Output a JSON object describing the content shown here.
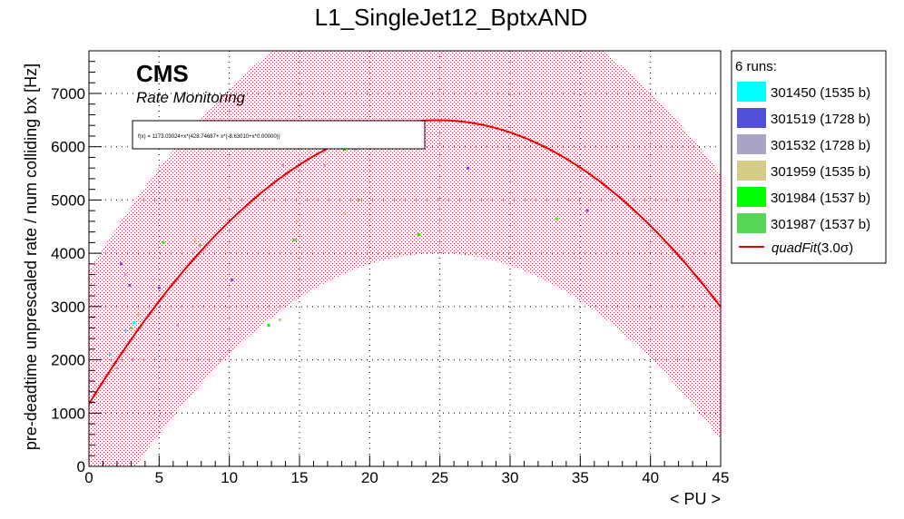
{
  "chart_data": {
    "type": "scatter",
    "title": "L1_SingleJet12_BptxAND",
    "xlabel": "< PU >",
    "ylabel": "pre-deadtime unprescaled rate / num colliding bx [Hz]",
    "xlim": [
      0,
      45
    ],
    "ylim": [
      0,
      7800
    ],
    "x_ticks": [
      0,
      5,
      10,
      15,
      20,
      25,
      30,
      35,
      40,
      45
    ],
    "y_ticks": [
      0,
      1000,
      2000,
      3000,
      4000,
      5000,
      6000,
      7000
    ],
    "grid": true,
    "legend_position": "right",
    "annotations": {
      "cms_label": "CMS",
      "subtitle": "Rate Monitoring",
      "fit_formula": "f(x) = 1173.03024+x*(428.74687+ x*(-8.63010+x*0.00000))"
    },
    "legend": {
      "header": "6 runs:",
      "fit_name": "quadFit",
      "fit_suffix": "(3.0σ)"
    },
    "fit": {
      "name": "quadFit(3.0σ)",
      "coefficients": [
        1173.03024,
        428.74687,
        -8.6301
      ],
      "x_range": [
        0,
        45
      ],
      "band_sigma_hz": 2500,
      "color": "#e00000",
      "band_color": "#b03040"
    },
    "series": [
      {
        "name": "301450 (1535 b)",
        "color": "#00ffff",
        "points": [
          [
            1.5,
            2100
          ],
          [
            2.6,
            2550
          ],
          [
            3.2,
            2700
          ]
        ]
      },
      {
        "name": "301519 (1728 b)",
        "color": "#5050d8",
        "points": [
          [
            2.3,
            3800
          ],
          [
            2.9,
            3400
          ],
          [
            5.0,
            3350
          ],
          [
            10.2,
            3500
          ],
          [
            27.0,
            5600
          ],
          [
            35.5,
            4800
          ]
        ]
      },
      {
        "name": "301532 (1728 b)",
        "color": "#a8a4c4",
        "points": [
          [
            2.0,
            1850
          ],
          [
            2.6,
            3600
          ],
          [
            3.1,
            2000
          ],
          [
            6.3,
            2650
          ],
          [
            13.8,
            5650
          ],
          [
            16.8,
            5650
          ],
          [
            19.0,
            5950
          ]
        ]
      },
      {
        "name": "301959 (1535 b)",
        "color": "#d4cc88",
        "points": [
          [
            3.5,
            2850
          ],
          [
            7.6,
            4250
          ],
          [
            13.6,
            2750
          ],
          [
            14.8,
            4600
          ],
          [
            18.2,
            4750
          ]
        ]
      },
      {
        "name": "301984 (1537 b)",
        "color": "#00ff00",
        "points": [
          [
            5.3,
            4200
          ],
          [
            12.8,
            2650
          ],
          [
            14.6,
            4250
          ],
          [
            18.2,
            5950
          ],
          [
            23.5,
            4350
          ],
          [
            33.3,
            4650
          ]
        ]
      },
      {
        "name": "301987 (1537 b)",
        "color": "#55d855",
        "points": [
          [
            3.0,
            2600
          ],
          [
            7.9,
            4150
          ],
          [
            14.7,
            4250
          ],
          [
            19.2,
            5000
          ]
        ]
      }
    ]
  }
}
